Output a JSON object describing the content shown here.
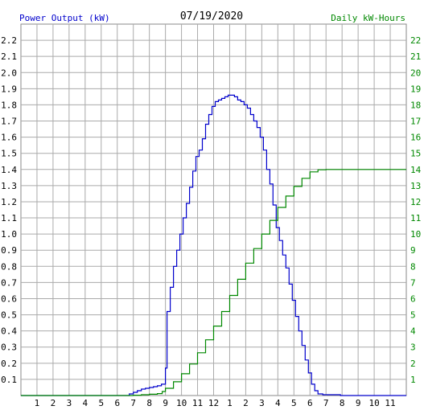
{
  "chart_data": {
    "type": "line",
    "date": "07/19/2020",
    "ylabel_left": "Power Output (kW)",
    "ylabel_right": "Daily kW-Hours",
    "x_ticks": [
      "1",
      "2",
      "3",
      "4",
      "5",
      "6",
      "7",
      "8",
      "9",
      "10",
      "11",
      "12",
      "1",
      "2",
      "3",
      "4",
      "5",
      "6",
      "7",
      "8",
      "9",
      "10",
      "11"
    ],
    "y_left_ticks": [
      "0.1",
      "0.2",
      "0.3",
      "0.4",
      "0.5",
      "0.6",
      "0.7",
      "0.8",
      "0.9",
      "1.0",
      "1.1",
      "1.2",
      "1.3",
      "1.4",
      "1.5",
      "1.6",
      "1.7",
      "1.8",
      "1.9",
      "2.0",
      "2.1",
      "2.2"
    ],
    "y_right_ticks": [
      "1",
      "2",
      "3",
      "4",
      "5",
      "6",
      "7",
      "8",
      "9",
      "10",
      "11",
      "12",
      "13",
      "14",
      "15",
      "16",
      "17",
      "18",
      "19",
      "20",
      "21",
      "22"
    ],
    "x_range_hours": [
      0,
      24
    ],
    "y_left_range": [
      0,
      2.3
    ],
    "y_right_range": [
      0,
      23
    ],
    "grid": true,
    "series": [
      {
        "axis": "left",
        "color": "#0000cc",
        "points": [
          [
            0.0,
            0
          ],
          [
            6.5,
            0
          ],
          [
            6.75,
            0.01
          ],
          [
            7.0,
            0.02
          ],
          [
            7.25,
            0.03
          ],
          [
            7.5,
            0.04
          ],
          [
            7.75,
            0.045
          ],
          [
            8.0,
            0.05
          ],
          [
            8.25,
            0.055
          ],
          [
            8.5,
            0.06
          ],
          [
            8.75,
            0.07
          ],
          [
            9.0,
            0.17
          ],
          [
            9.1,
            0.52
          ],
          [
            9.3,
            0.67
          ],
          [
            9.5,
            0.8
          ],
          [
            9.7,
            0.9
          ],
          [
            9.9,
            1.0
          ],
          [
            10.1,
            1.1
          ],
          [
            10.3,
            1.19
          ],
          [
            10.5,
            1.29
          ],
          [
            10.7,
            1.39
          ],
          [
            10.9,
            1.48
          ],
          [
            11.1,
            1.52
          ],
          [
            11.3,
            1.59
          ],
          [
            11.5,
            1.68
          ],
          [
            11.7,
            1.74
          ],
          [
            11.9,
            1.79
          ],
          [
            12.1,
            1.82
          ],
          [
            12.3,
            1.83
          ],
          [
            12.5,
            1.84
          ],
          [
            12.7,
            1.85
          ],
          [
            12.9,
            1.86
          ],
          [
            13.1,
            1.86
          ],
          [
            13.3,
            1.85
          ],
          [
            13.5,
            1.83
          ],
          [
            13.7,
            1.82
          ],
          [
            13.9,
            1.8
          ],
          [
            14.1,
            1.78
          ],
          [
            14.3,
            1.74
          ],
          [
            14.5,
            1.7
          ],
          [
            14.7,
            1.66
          ],
          [
            14.9,
            1.6
          ],
          [
            15.1,
            1.52
          ],
          [
            15.3,
            1.4
          ],
          [
            15.5,
            1.31
          ],
          [
            15.7,
            1.18
          ],
          [
            15.9,
            1.04
          ],
          [
            16.1,
            0.96
          ],
          [
            16.3,
            0.87
          ],
          [
            16.5,
            0.79
          ],
          [
            16.7,
            0.69
          ],
          [
            16.9,
            0.59
          ],
          [
            17.1,
            0.49
          ],
          [
            17.3,
            0.4
          ],
          [
            17.5,
            0.31
          ],
          [
            17.7,
            0.22
          ],
          [
            17.9,
            0.14
          ],
          [
            18.1,
            0.07
          ],
          [
            18.3,
            0.03
          ],
          [
            18.5,
            0.01
          ],
          [
            18.8,
            0.005
          ],
          [
            19.9,
            0.0
          ],
          [
            24.0,
            0.0
          ]
        ]
      },
      {
        "axis": "right",
        "color": "#008800",
        "points": [
          [
            0.0,
            0
          ],
          [
            6.5,
            0
          ],
          [
            7.0,
            0.02
          ],
          [
            7.5,
            0.05
          ],
          [
            8.0,
            0.08
          ],
          [
            8.5,
            0.12
          ],
          [
            8.8,
            0.25
          ],
          [
            9.0,
            0.45
          ],
          [
            9.5,
            0.85
          ],
          [
            10.0,
            1.35
          ],
          [
            10.5,
            1.95
          ],
          [
            11.0,
            2.65
          ],
          [
            11.5,
            3.45
          ],
          [
            12.0,
            4.3
          ],
          [
            12.5,
            5.2
          ],
          [
            13.0,
            6.2
          ],
          [
            13.5,
            7.2
          ],
          [
            14.0,
            8.2
          ],
          [
            14.5,
            9.1
          ],
          [
            15.0,
            10.0
          ],
          [
            15.5,
            10.85
          ],
          [
            16.0,
            11.65
          ],
          [
            16.5,
            12.35
          ],
          [
            17.0,
            12.95
          ],
          [
            17.5,
            13.45
          ],
          [
            18.0,
            13.85
          ],
          [
            18.5,
            13.98
          ],
          [
            19.0,
            14.0
          ],
          [
            24.0,
            14.0
          ]
        ]
      }
    ]
  }
}
